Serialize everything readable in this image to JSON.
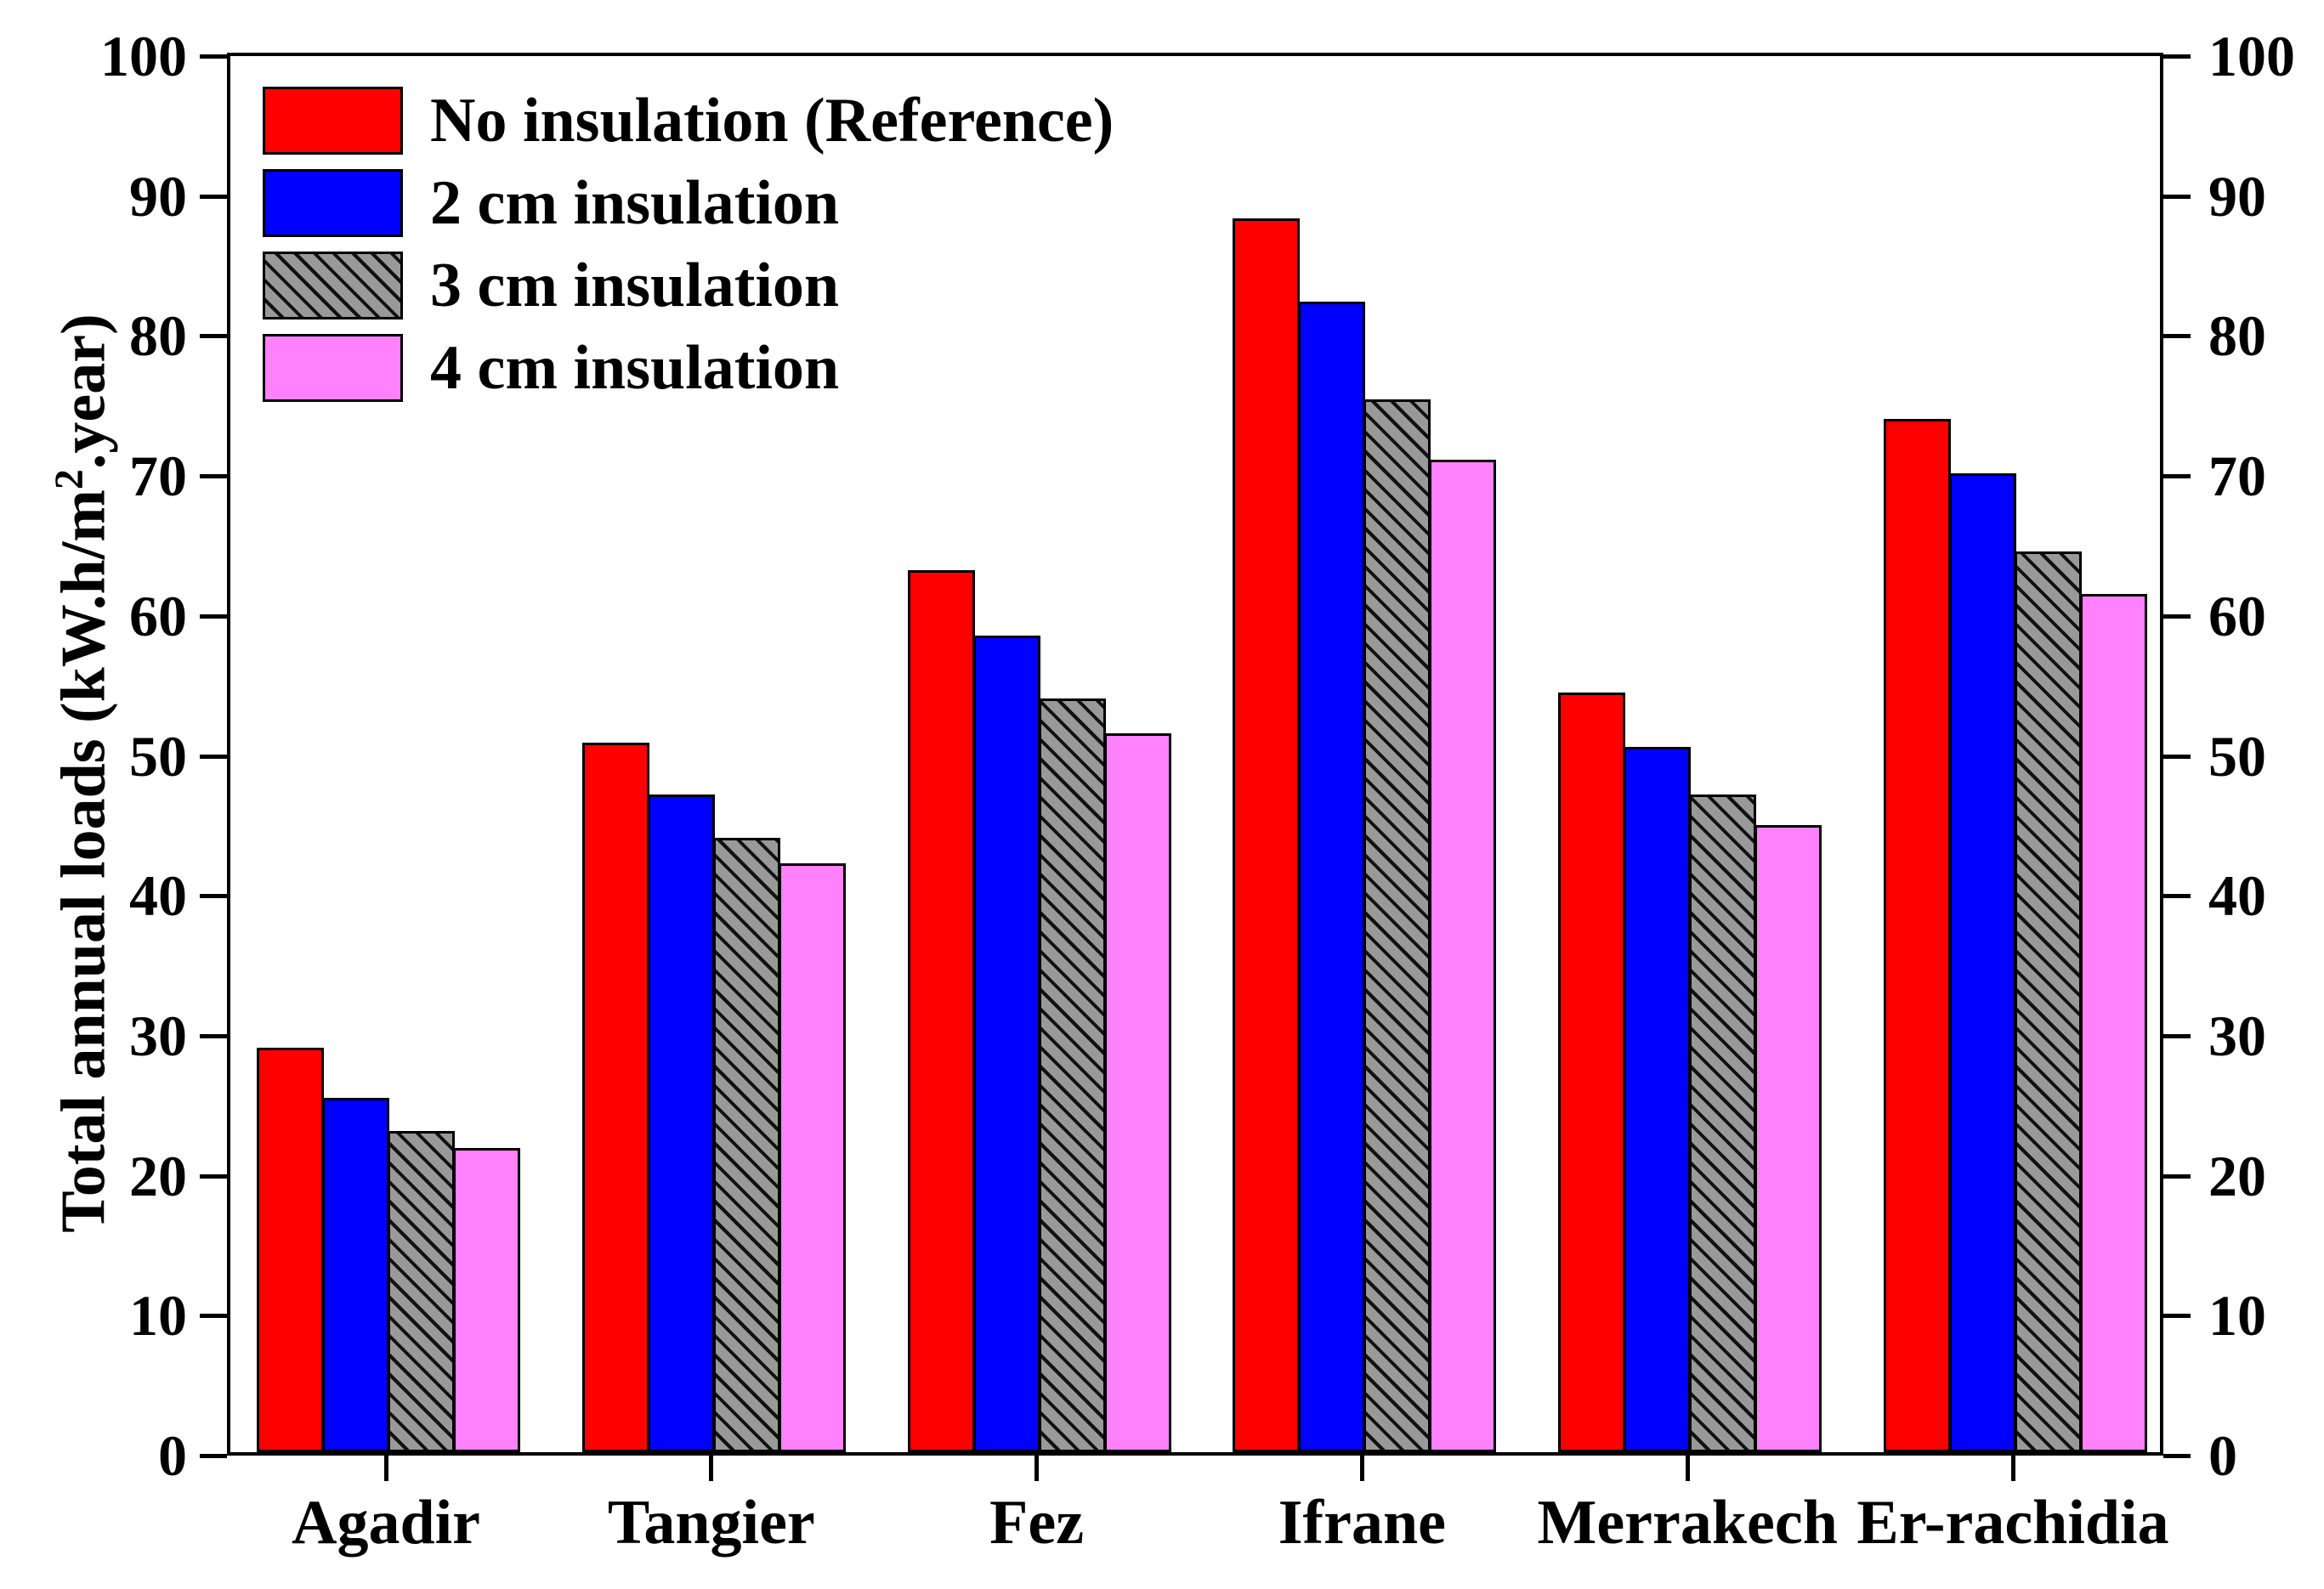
{
  "figure": {
    "background": "#ffffff",
    "axis_color": "#000000"
  },
  "chart_data": {
    "type": "bar",
    "title": "",
    "xlabel": "",
    "ylabel_prefix": "Total annual loads (kW.h/m",
    "ylabel_sup": "2",
    "ylabel_suffix": ".year)",
    "categories": [
      "Agadir",
      "Tangier",
      "Fez",
      "Ifrane",
      "Merrakech",
      "Er-rachidia"
    ],
    "series": [
      {
        "name": "No insulation (Reference)",
        "color": "#fe0000",
        "hatch": false,
        "values": [
          29.0,
          50.8,
          63.2,
          88.4,
          54.4,
          74.0
        ]
      },
      {
        "name": "2 cm insulation",
        "color": "#0000fe",
        "hatch": false,
        "values": [
          25.4,
          47.1,
          58.5,
          82.4,
          50.5,
          70.1
        ]
      },
      {
        "name": "3 cm insulation",
        "color": "#999999",
        "hatch": true,
        "hatch_color": "#111111",
        "values": [
          23.0,
          44.0,
          54.0,
          75.4,
          47.1,
          64.5
        ]
      },
      {
        "name": "4 cm insulation",
        "color": "#ff82fc",
        "hatch": false,
        "values": [
          21.8,
          42.2,
          51.5,
          71.1,
          44.9,
          61.5
        ]
      }
    ],
    "ylim": [
      0,
      100
    ],
    "yticks": [
      0,
      10,
      20,
      30,
      40,
      50,
      60,
      70,
      80,
      90,
      100
    ],
    "axes": {
      "left": true,
      "right": true,
      "top": true,
      "bottom": true
    },
    "grid": false,
    "legend_position": "top-left-inside",
    "bar_border_color": "#000000"
  }
}
